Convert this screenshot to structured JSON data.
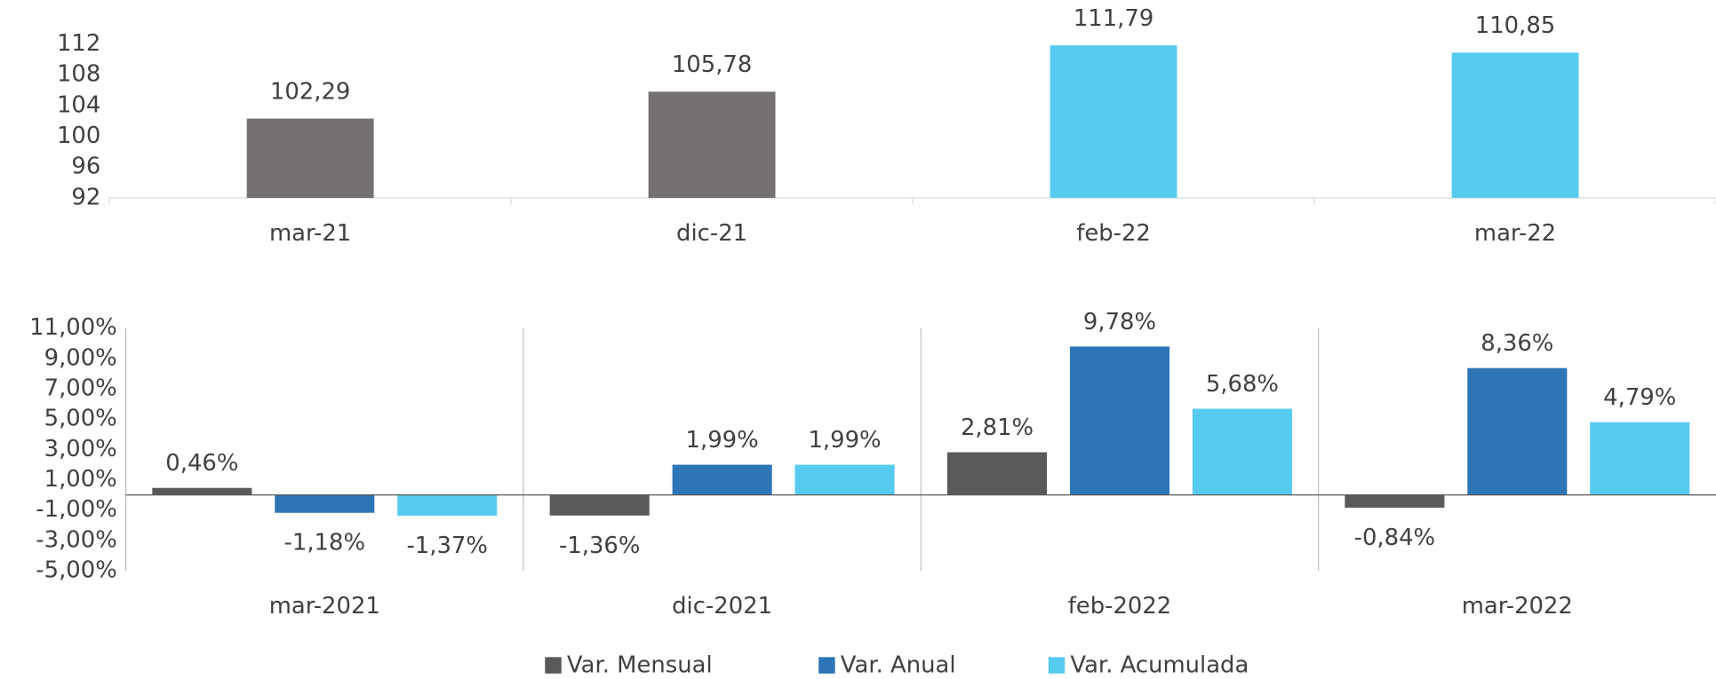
{
  "chart_data": [
    {
      "type": "bar",
      "categories": [
        "mar-21",
        "dic-21",
        "feb-22",
        "mar-22"
      ],
      "values": [
        102.29,
        105.78,
        111.79,
        110.85
      ],
      "value_labels": [
        "102,29",
        "105,78",
        "111,79",
        "110,85"
      ],
      "colors": [
        "#767171",
        "#767171",
        "#56cbef",
        "#56cbef"
      ],
      "ylim": [
        92,
        112
      ],
      "yticks": [
        92,
        96,
        100,
        104,
        108,
        112
      ]
    },
    {
      "type": "grouped_bar",
      "categories": [
        "mar-2021",
        "dic-2021",
        "feb-2022",
        "mar-2022"
      ],
      "series": [
        {
          "name": "Var. Mensual",
          "color": "#595959",
          "values": [
            0.46,
            -1.36,
            2.81,
            -0.84
          ],
          "value_labels": [
            "0,46%",
            "-1,36%",
            "2,81%",
            "-0,84%"
          ]
        },
        {
          "name": "Var. Anual",
          "color": "#2e75b6",
          "values": [
            -1.18,
            1.99,
            9.78,
            8.36
          ],
          "value_labels": [
            "-1,18%",
            "1,99%",
            "9,78%",
            "8,36%"
          ]
        },
        {
          "name": "Var. Acumulada",
          "color": "#56cbef",
          "values": [
            -1.37,
            1.99,
            5.68,
            4.79
          ],
          "value_labels": [
            "-1,37%",
            "1,99%",
            "5,68%",
            "4,79%"
          ]
        }
      ],
      "ylim": [
        -5,
        11
      ],
      "yticks": [
        {
          "value": -5,
          "label": "-5,00%"
        },
        {
          "value": -3,
          "label": "-3,00%"
        },
        {
          "value": -1,
          "label": "-1,00%"
        },
        {
          "value": 1,
          "label": "1,00%"
        },
        {
          "value": 3,
          "label": "3,00%"
        },
        {
          "value": 5,
          "label": "5,00%"
        },
        {
          "value": 7,
          "label": "7,00%"
        },
        {
          "value": 9,
          "label": "9,00%"
        },
        {
          "value": 11,
          "label": "11,00%"
        }
      ],
      "legend": "bottom"
    }
  ]
}
